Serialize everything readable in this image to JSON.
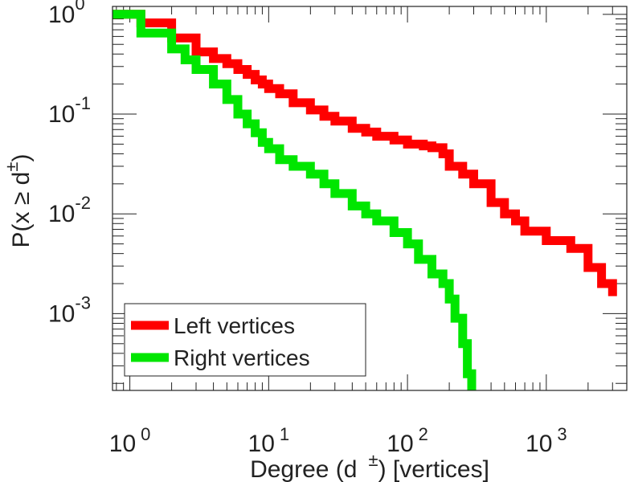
{
  "chart_data": {
    "type": "line",
    "step": true,
    "xscale": "log",
    "yscale": "log",
    "xlim": [
      0.75,
      3800
    ],
    "ylim": [
      0.00017,
      1.2
    ],
    "xlabel": {
      "main": "Degree (d",
      "sup": "±",
      "suffix": ") [vertices]"
    },
    "ylabel": {
      "main": "P(x ≥ d",
      "sup": "±",
      "suffix": ")"
    },
    "xticks": [
      {
        "value": 1,
        "base": "10",
        "exp": "0"
      },
      {
        "value": 10,
        "base": "10",
        "exp": "1"
      },
      {
        "value": 100,
        "base": "10",
        "exp": "2"
      },
      {
        "value": 1000,
        "base": "10",
        "exp": "3"
      }
    ],
    "yticks": [
      {
        "value": 1,
        "base": "10",
        "exp": "0"
      },
      {
        "value": 0.1,
        "base": "10",
        "exp": "-1"
      },
      {
        "value": 0.01,
        "base": "10",
        "exp": "-2"
      },
      {
        "value": 0.001,
        "base": "10",
        "exp": "-3"
      }
    ],
    "legend": {
      "position": "bottom-left"
    },
    "series": [
      {
        "name": "Left vertices",
        "color": "#ff0000",
        "x": [
          0.75,
          1,
          1.2,
          1.6,
          2,
          3,
          4,
          5,
          6,
          7,
          8,
          9,
          10,
          12,
          15,
          20,
          25,
          30,
          40,
          50,
          60,
          80,
          100,
          130,
          150,
          180,
          200,
          250,
          300,
          400,
          500,
          600,
          700,
          1000,
          1500,
          2000,
          2500,
          3000
        ],
        "y": [
          1,
          1,
          0.82,
          0.82,
          0.58,
          0.42,
          0.36,
          0.32,
          0.28,
          0.25,
          0.22,
          0.2,
          0.18,
          0.16,
          0.13,
          0.11,
          0.095,
          0.085,
          0.072,
          0.066,
          0.06,
          0.055,
          0.05,
          0.048,
          0.046,
          0.04,
          0.03,
          0.025,
          0.02,
          0.013,
          0.01,
          0.0085,
          0.0067,
          0.0054,
          0.0045,
          0.0029,
          0.002,
          0.0015
        ]
      },
      {
        "name": "Right vertices",
        "color": "#00e600",
        "x": [
          0.75,
          1,
          1.2,
          1.6,
          2,
          2.5,
          3,
          4,
          5,
          6,
          7,
          8,
          9,
          10,
          12,
          15,
          20,
          25,
          30,
          40,
          50,
          60,
          80,
          100,
          120,
          150,
          180,
          200,
          220,
          250,
          270,
          290
        ],
        "y": [
          1,
          1,
          0.65,
          0.65,
          0.45,
          0.35,
          0.28,
          0.2,
          0.14,
          0.1,
          0.08,
          0.065,
          0.052,
          0.045,
          0.035,
          0.03,
          0.025,
          0.02,
          0.016,
          0.012,
          0.01,
          0.0085,
          0.0065,
          0.005,
          0.0035,
          0.0025,
          0.002,
          0.0014,
          0.0009,
          0.0005,
          0.00025,
          0.00017
        ]
      }
    ]
  }
}
